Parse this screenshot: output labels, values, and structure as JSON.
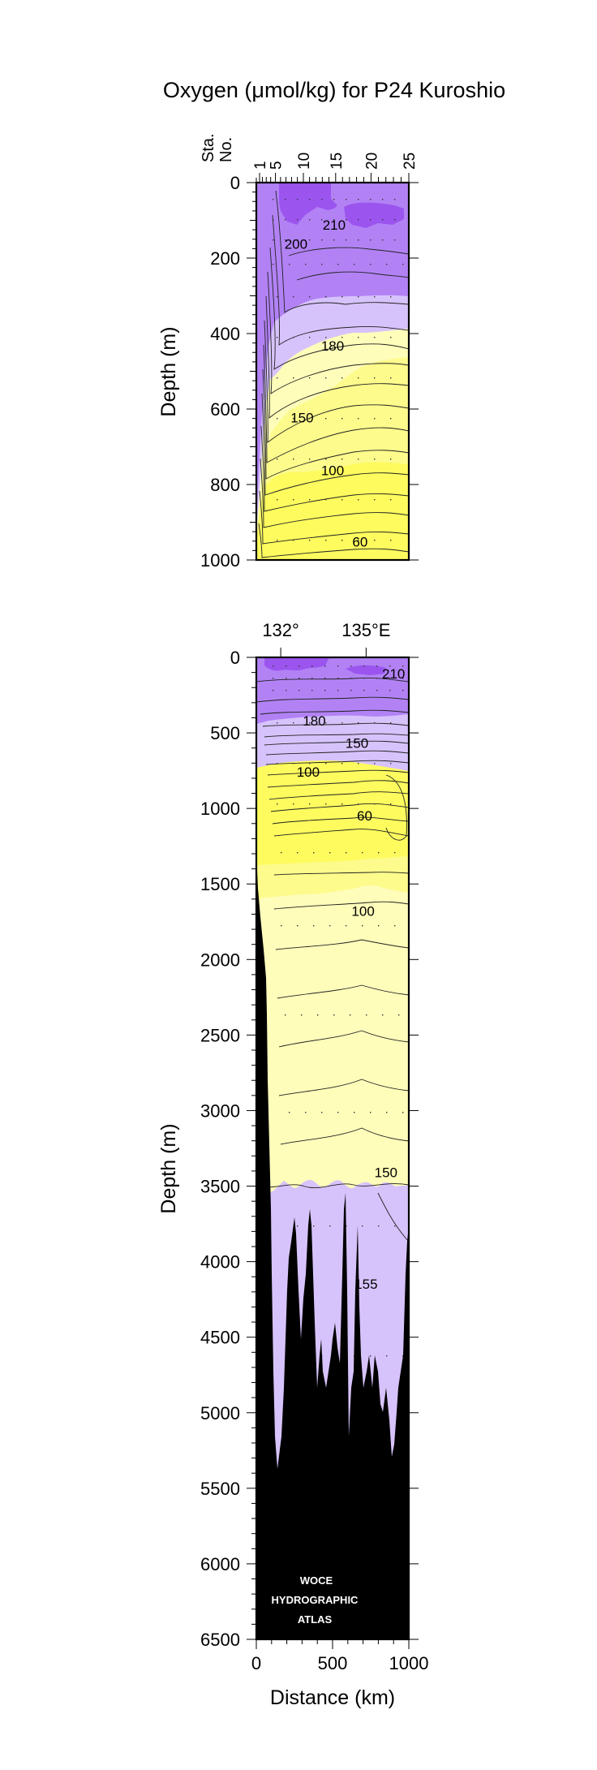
{
  "title": "Oxygen (μmol/kg) for P24 Kuroshio",
  "watermark": [
    "WOCE",
    "HYDROGRAPHIC",
    "ATLAS"
  ],
  "colors": {
    "deep_purple": "#9b55ee",
    "purple": "#b282f5",
    "light_purple": "#d7c3fb",
    "bright_yellow": "#fdfb5e",
    "yellow": "#fdfb8c",
    "pale_yellow": "#fefdba",
    "bottom": "#000000"
  },
  "chart_data": [
    {
      "type": "contour",
      "panel": "upper",
      "station_axis": {
        "label_line1": "Sta.",
        "label_line2": "No.",
        "ticks": [
          "1",
          "5",
          "10",
          "15",
          "20",
          "25"
        ]
      },
      "ylabel": "Depth (m)",
      "ylim": [
        0,
        1000
      ],
      "yticks": [
        "0",
        "200",
        "400",
        "600",
        "800",
        "1000"
      ],
      "xlim": [
        0,
        1000
      ],
      "contour_labels": [
        {
          "text": "210",
          "km": 510,
          "depth": 125
        },
        {
          "text": "200",
          "km": 260,
          "depth": 175
        },
        {
          "text": "180",
          "km": 500,
          "depth": 445
        },
        {
          "text": "150",
          "km": 300,
          "depth": 635
        },
        {
          "text": "100",
          "km": 500,
          "depth": 775
        },
        {
          "text": "60",
          "km": 680,
          "depth": 965
        }
      ]
    },
    {
      "type": "contour",
      "panel": "lower",
      "lon_axis": {
        "ticks": [
          "132°",
          "135°E"
        ],
        "km": [
          160,
          720
        ]
      },
      "ylabel": "Depth (m)",
      "ylim": [
        0,
        6500
      ],
      "yticks": [
        "0",
        "500",
        "1000",
        "1500",
        "2000",
        "2500",
        "3000",
        "3500",
        "4000",
        "4500",
        "5000",
        "5500",
        "6000",
        "6500"
      ],
      "xlabel": "Distance (km)",
      "xlim": [
        0,
        1000
      ],
      "xticks": [
        "0",
        "500",
        "1000"
      ],
      "contour_labels": [
        {
          "text": "210",
          "km": 900,
          "depth": 140
        },
        {
          "text": "180",
          "km": 380,
          "depth": 450
        },
        {
          "text": "150",
          "km": 660,
          "depth": 600
        },
        {
          "text": "100",
          "km": 340,
          "depth": 790
        },
        {
          "text": "60",
          "km": 710,
          "depth": 1080
        },
        {
          "text": "100",
          "km": 700,
          "depth": 1710
        },
        {
          "text": "150",
          "km": 850,
          "depth": 3440
        },
        {
          "text": "155",
          "km": 720,
          "depth": 4180
        }
      ]
    }
  ]
}
